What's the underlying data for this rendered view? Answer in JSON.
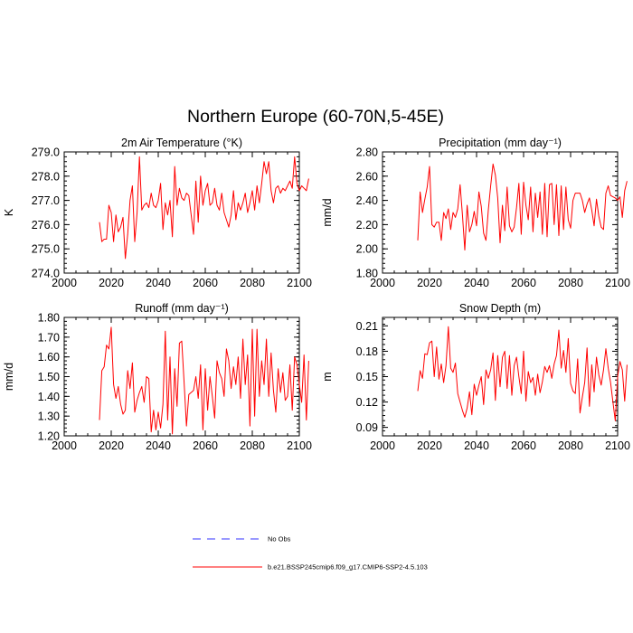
{
  "figure": {
    "title": "Northern Europe (60-70N,5-45E)"
  },
  "legend": [
    {
      "label": "No Obs",
      "color": "#3333ff",
      "dash": true
    },
    {
      "label": "b.e21.BSSP245cmip6.f09_g17.CMIP6-SSP2-4.5.103",
      "color": "#ff0000",
      "dash": false
    }
  ],
  "chart_data": [
    {
      "type": "line",
      "title": "2m Air Temperature (°K)",
      "ylabel": "K",
      "xlim": [
        2000,
        2100
      ],
      "ylim": [
        274.0,
        279.0
      ],
      "xticks": [
        "2000",
        "2020",
        "2040",
        "2060",
        "2080",
        "2100"
      ],
      "yticks": [
        "274.0",
        "275.0",
        "276.0",
        "277.0",
        "278.0",
        "279.0"
      ],
      "grid": false,
      "series": [
        {
          "color": "#ff0000",
          "x_start": 2015,
          "values": [
            276.1,
            275.3,
            275.4,
            275.4,
            276.8,
            276.5,
            275.3,
            276.4,
            275.7,
            275.9,
            276.3,
            274.6,
            275.6,
            277.0,
            277.6,
            275.3,
            276.5,
            278.8,
            276.6,
            276.8,
            276.9,
            276.7,
            277.3,
            276.8,
            276.7,
            277.0,
            277.7,
            275.8,
            276.9,
            276.4,
            277.0,
            275.5,
            278.4,
            276.8,
            277.5,
            277.1,
            277.0,
            277.3,
            277.2,
            276.4,
            275.6,
            277.8,
            276.1,
            278.0,
            276.8,
            277.4,
            277.7,
            276.8,
            276.9,
            277.5,
            276.8,
            276.6,
            277.3,
            276.5,
            276.2,
            275.9,
            276.4,
            277.4,
            276.2,
            276.9,
            276.6,
            276.9,
            277.3,
            276.5,
            276.9,
            277.4,
            276.6,
            277.6,
            276.9,
            277.7,
            278.6,
            278.1,
            278.6,
            277.4,
            276.9,
            277.5,
            277.6,
            277.3,
            277.5,
            277.4,
            277.6,
            277.8,
            277.5,
            278.8,
            277.7,
            277.4,
            277.6,
            277.5,
            277.4,
            277.9
          ]
        }
      ]
    },
    {
      "type": "line",
      "title": "Precipitation (mm day⁻¹)",
      "ylabel": "mm/d",
      "xlim": [
        2000,
        2100
      ],
      "ylim": [
        1.8,
        2.8
      ],
      "xticks": [
        "2000",
        "2020",
        "2040",
        "2060",
        "2080",
        "2100"
      ],
      "yticks": [
        "1.80",
        "2.00",
        "2.20",
        "2.40",
        "2.60",
        "2.80"
      ],
      "grid": false,
      "series": [
        {
          "color": "#ff0000",
          "x_start": 2015,
          "values": [
            2.07,
            2.47,
            2.3,
            2.41,
            2.51,
            2.68,
            2.2,
            2.18,
            2.22,
            2.22,
            2.07,
            2.3,
            2.25,
            2.33,
            2.16,
            2.3,
            2.26,
            2.33,
            2.53,
            2.28,
            1.99,
            2.36,
            2.14,
            2.2,
            2.31,
            2.19,
            2.47,
            2.35,
            2.13,
            2.07,
            2.32,
            2.52,
            2.7,
            2.61,
            2.42,
            2.05,
            2.36,
            2.15,
            2.51,
            2.19,
            2.14,
            2.18,
            2.34,
            2.54,
            2.12,
            2.55,
            2.36,
            2.24,
            2.51,
            2.14,
            2.46,
            2.26,
            2.47,
            2.12,
            2.54,
            2.1,
            2.53,
            2.54,
            2.2,
            2.53,
            2.11,
            2.52,
            2.16,
            2.51,
            2.24,
            2.17,
            2.4,
            2.46,
            2.46,
            2.46,
            2.4,
            2.3,
            2.37,
            2.42,
            2.32,
            2.19,
            2.41,
            2.27,
            2.18,
            2.16,
            2.46,
            2.52,
            2.44,
            2.43,
            2.42,
            2.4,
            2.43,
            2.26,
            2.48,
            2.56
          ]
        }
      ]
    },
    {
      "type": "line",
      "title": "Runoff (mm day⁻¹)",
      "ylabel": "mm/d",
      "xlim": [
        2000,
        2100
      ],
      "ylim": [
        1.2,
        1.8
      ],
      "xticks": [
        "2000",
        "2020",
        "2040",
        "2060",
        "2080",
        "2100"
      ],
      "yticks": [
        "1.20",
        "1.30",
        "1.40",
        "1.50",
        "1.60",
        "1.70",
        "1.80"
      ],
      "grid": false,
      "series": [
        {
          "color": "#ff0000",
          "x_start": 2015,
          "values": [
            1.28,
            1.53,
            1.55,
            1.66,
            1.64,
            1.75,
            1.46,
            1.39,
            1.45,
            1.36,
            1.31,
            1.33,
            1.53,
            1.44,
            1.57,
            1.32,
            1.38,
            1.42,
            1.45,
            1.37,
            1.5,
            1.49,
            1.22,
            1.33,
            1.23,
            1.32,
            1.24,
            1.36,
            1.73,
            1.28,
            1.6,
            1.21,
            1.54,
            1.35,
            1.67,
            1.68,
            1.47,
            1.25,
            1.41,
            1.42,
            1.43,
            1.5,
            1.39,
            1.56,
            1.23,
            1.54,
            1.33,
            1.5,
            1.4,
            1.29,
            1.58,
            1.52,
            1.49,
            1.4,
            1.64,
            1.58,
            1.44,
            1.55,
            1.46,
            1.6,
            1.39,
            1.69,
            1.46,
            1.61,
            1.25,
            1.74,
            1.3,
            1.74,
            1.4,
            1.58,
            1.46,
            1.69,
            1.4,
            1.62,
            1.43,
            1.32,
            1.54,
            1.42,
            1.52,
            1.38,
            1.4,
            1.56,
            1.33,
            1.6,
            1.56,
            1.46,
            1.37,
            1.61,
            1.28,
            1.58
          ]
        }
      ]
    },
    {
      "type": "line",
      "title": "Snow Depth (m)",
      "ylabel": "m",
      "xlim": [
        2000,
        2100
      ],
      "ylim": [
        0.08,
        0.22
      ],
      "xticks": [
        "2000",
        "2020",
        "2040",
        "2060",
        "2080",
        "2100"
      ],
      "yticks": [
        "0.09",
        "0.12",
        "0.15",
        "0.18",
        "0.21"
      ],
      "grid": false,
      "series": [
        {
          "color": "#ff0000",
          "x_start": 2015,
          "values": [
            0.133,
            0.157,
            0.148,
            0.177,
            0.176,
            0.19,
            0.192,
            0.15,
            0.185,
            0.147,
            0.165,
            0.143,
            0.163,
            0.209,
            0.16,
            0.155,
            0.166,
            0.13,
            0.12,
            0.11,
            0.102,
            0.113,
            0.132,
            0.105,
            0.141,
            0.128,
            0.14,
            0.15,
            0.117,
            0.158,
            0.148,
            0.158,
            0.178,
            0.122,
            0.175,
            0.138,
            0.173,
            0.18,
            0.136,
            0.175,
            0.128,
            0.163,
            0.173,
            0.15,
            0.13,
            0.18,
            0.121,
            0.156,
            0.143,
            0.149,
            0.128,
            0.153,
            0.131,
            0.144,
            0.162,
            0.155,
            0.163,
            0.148,
            0.165,
            0.175,
            0.205,
            0.16,
            0.181,
            0.155,
            0.195,
            0.142,
            0.133,
            0.13,
            0.171,
            0.107,
            0.126,
            0.143,
            0.184,
            0.115,
            0.164,
            0.132,
            0.173,
            0.152,
            0.14,
            0.158,
            0.183,
            0.16,
            0.143,
            0.12,
            0.098,
            0.15,
            0.168,
            0.158,
            0.121,
            0.164
          ]
        }
      ]
    }
  ]
}
